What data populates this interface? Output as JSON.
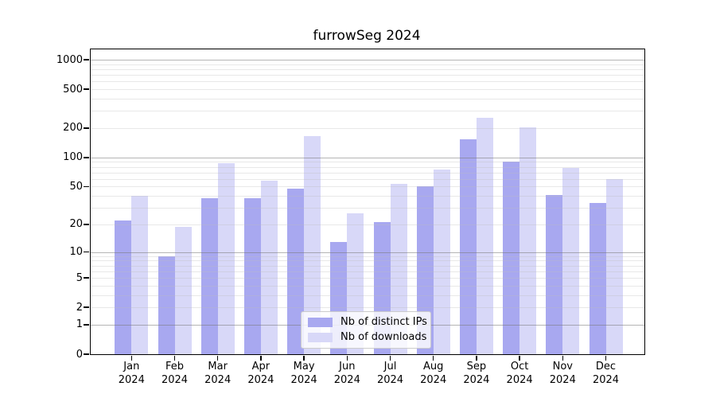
{
  "chart_data": {
    "type": "bar",
    "title": "furrowSeg 2024",
    "categories": [
      "Jan",
      "Feb",
      "Mar",
      "Apr",
      "May",
      "Jun",
      "Jul",
      "Aug",
      "Sep",
      "Oct",
      "Nov",
      "Dec"
    ],
    "x_tick_line2": "2024",
    "series": [
      {
        "name": "Nb of distinct IPs",
        "color": "#a8a8f0",
        "values": [
          22,
          9,
          38,
          38,
          48,
          13,
          21,
          50,
          155,
          90,
          41,
          34
        ]
      },
      {
        "name": "Nb of downloads",
        "color": "#d8d8f8",
        "values": [
          40,
          19,
          88,
          58,
          165,
          26,
          53,
          75,
          255,
          203,
          78,
          60
        ]
      }
    ],
    "y_ticks": [
      0,
      1,
      2,
      5,
      10,
      20,
      50,
      100,
      200,
      500,
      1000
    ],
    "y_scale": "log1p",
    "ylim": [
      0,
      1000
    ],
    "xlabel": "",
    "ylabel": "",
    "grid": true,
    "gridlines_major_at": [
      1,
      10,
      100,
      1000
    ],
    "legend_position": "lower center"
  }
}
